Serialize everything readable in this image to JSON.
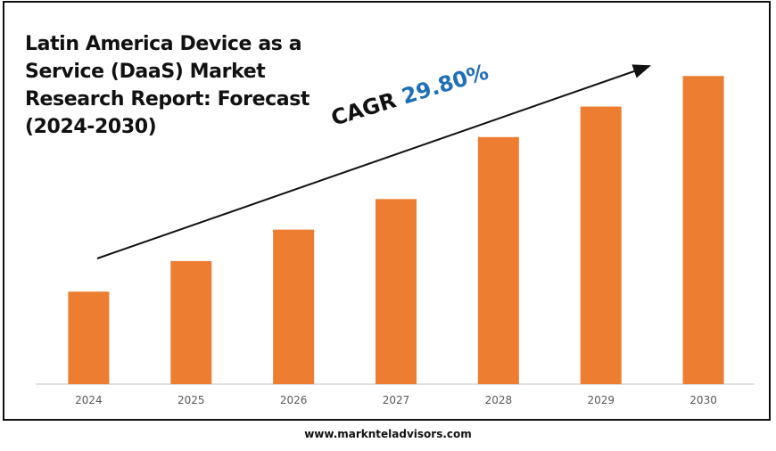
{
  "title": "Latin America Device as a Service (DaaS) Market Research Report: Forecast (2024-2030)",
  "cagr": {
    "label": "CAGR",
    "value": "29.80%"
  },
  "footer": {
    "url": "www.marknteladvisors.com"
  },
  "colors": {
    "bar": "#ed7d31",
    "cagr_value": "#1f6fb5",
    "axis": "#bfbfbf",
    "tick_text": "#595959"
  },
  "chart_data": {
    "type": "bar",
    "categories": [
      "2024",
      "2025",
      "2026",
      "2027",
      "2028",
      "2029",
      "2030"
    ],
    "values": [
      100,
      133,
      167,
      200,
      267,
      300,
      333
    ],
    "ylim": [
      0,
      340
    ],
    "grid": false,
    "legend": "none",
    "annotation": "CAGR 29.80%"
  }
}
